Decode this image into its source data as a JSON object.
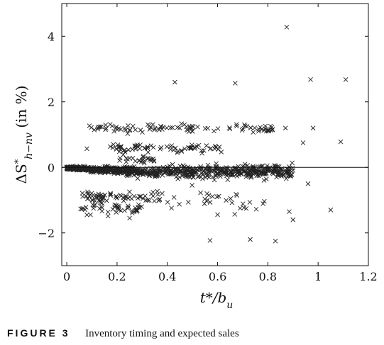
{
  "chart_data": {
    "type": "scatter",
    "title": "",
    "xlabel": "t*/b_u",
    "ylabel": "ΔS*_{h−nv} (in %)",
    "xlim": [
      -0.02,
      1.2
    ],
    "ylim": [
      -3,
      5
    ],
    "xticks": [
      0,
      0.2,
      0.4,
      0.6,
      0.8,
      1,
      1.2
    ],
    "xtick_labels": [
      "0",
      "0.2",
      "0.4",
      "0.6",
      "0.8",
      "1",
      "1.2"
    ],
    "yticks": [
      -2,
      0,
      2,
      4
    ],
    "ytick_labels": [
      "−2",
      "0",
      "2",
      "4"
    ],
    "marker": "x",
    "reference_line_y": 0,
    "grid": false,
    "notable_points": [
      {
        "x": 0.875,
        "y": 4.28
      },
      {
        "x": 0.43,
        "y": 2.6
      },
      {
        "x": 0.67,
        "y": 2.57
      },
      {
        "x": 0.97,
        "y": 2.68
      },
      {
        "x": 1.11,
        "y": 2.68
      },
      {
        "x": 0.09,
        "y": 1.27
      },
      {
        "x": 0.87,
        "y": 1.2
      },
      {
        "x": 0.98,
        "y": 1.2
      },
      {
        "x": 1.09,
        "y": 0.78
      },
      {
        "x": 0.94,
        "y": 0.75
      },
      {
        "x": 0.08,
        "y": 0.57
      },
      {
        "x": 0.96,
        "y": -0.5
      },
      {
        "x": 1.05,
        "y": -1.3
      },
      {
        "x": 0.885,
        "y": -1.35
      },
      {
        "x": 0.9,
        "y": -1.6
      },
      {
        "x": 0.57,
        "y": -2.23
      },
      {
        "x": 0.73,
        "y": -2.2
      },
      {
        "x": 0.83,
        "y": -2.25
      },
      {
        "x": 0.08,
        "y": -1.45
      },
      {
        "x": 0.25,
        "y": -1.55
      }
    ],
    "clusters": [
      {
        "name": "",
        "x_range": [
          0.09,
          0.82
        ],
        "y_center": 1.2,
        "y_spread": 0.07,
        "count": 95
      },
      {
        "name": "",
        "x_range": [
          0.17,
          0.62
        ],
        "y_center": 0.57,
        "y_spread": 0.06,
        "count": 75
      },
      {
        "name": "",
        "x_range": [
          0.2,
          0.35
        ],
        "y_center": 0.25,
        "y_spread": 0.05,
        "count": 25
      },
      {
        "name": "",
        "x_range": [
          0.06,
          0.38
        ],
        "y_center": -0.9,
        "y_spread": 0.08,
        "count": 60
      },
      {
        "name": "",
        "x_range": [
          0.05,
          0.3
        ],
        "y_center": -1.28,
        "y_spread": 0.09,
        "count": 45
      },
      {
        "name": "",
        "x_range": [
          0.3,
          0.8
        ],
        "y_center": -1.05,
        "y_spread": 0.2,
        "count": 40
      },
      {
        "name": "",
        "x_range": [
          0.0,
          0.9
        ],
        "y_center": -0.12,
        "y_spread": 0.12,
        "count": 900
      }
    ]
  },
  "caption": {
    "label": "FIGURE 3",
    "text": "Inventory timing and expected sales"
  }
}
